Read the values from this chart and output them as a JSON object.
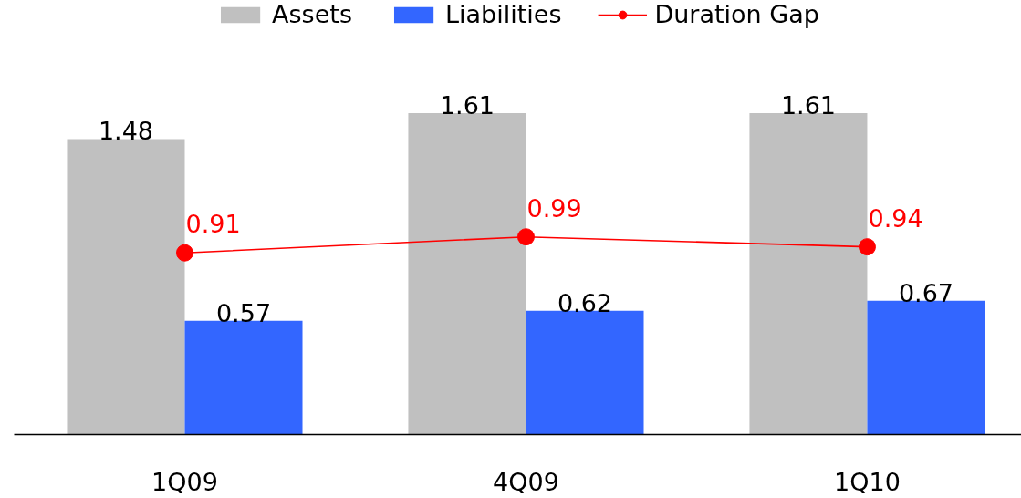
{
  "chart_data": {
    "type": "bar",
    "categories": [
      "1Q09",
      "4Q09",
      "1Q10"
    ],
    "series": [
      {
        "name": "Assets",
        "color": "#c0c0c0",
        "values": [
          1.48,
          1.61,
          1.61
        ]
      },
      {
        "name": "Liabilities",
        "color": "#3366ff",
        "values": [
          0.57,
          0.62,
          0.67
        ]
      },
      {
        "name": "Duration Gap",
        "type": "line",
        "color": "#ff0000",
        "values": [
          0.91,
          0.99,
          0.94
        ]
      }
    ],
    "tick_labels": "x",
    "data_labels": true,
    "legend": "top",
    "marker": "circle"
  }
}
